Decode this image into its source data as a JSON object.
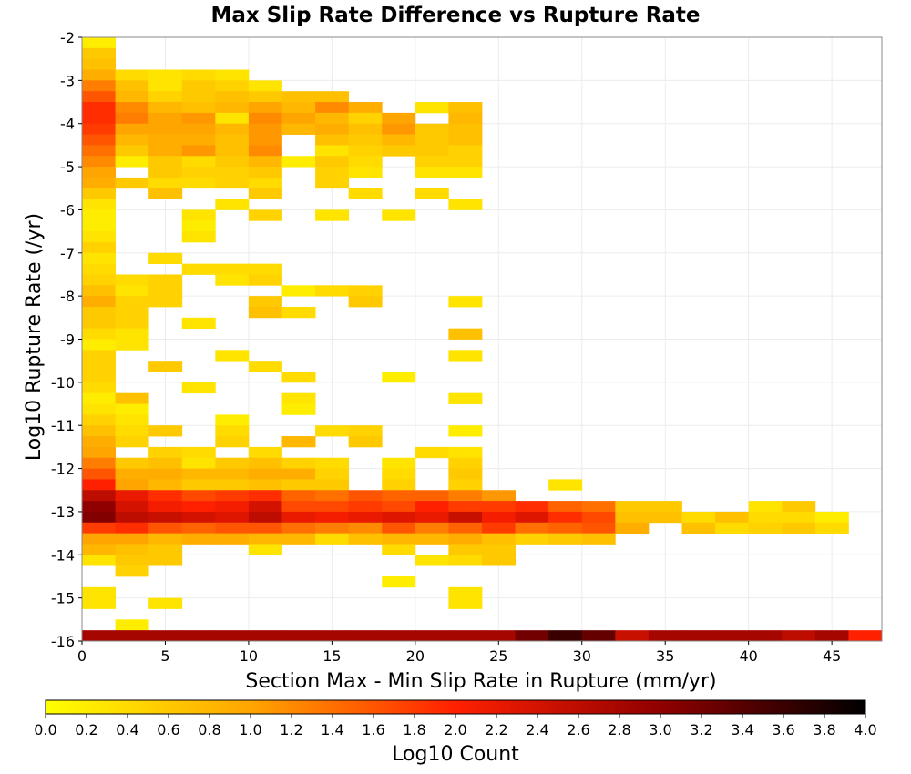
{
  "chart_data": {
    "type": "heatmap",
    "title": "Max Slip Rate Difference vs Rupture Rate",
    "xlabel": "Section Max - Min Slip Rate in Rupture (mm/yr)",
    "ylabel": "Log10 Rupture Rate (/yr)",
    "xlim": [
      0,
      48
    ],
    "ylim": [
      -16,
      -2
    ],
    "x_ticks": [
      0,
      5,
      10,
      15,
      20,
      25,
      30,
      35,
      40,
      45
    ],
    "y_ticks": [
      -2,
      -3,
      -4,
      -5,
      -6,
      -7,
      -8,
      -9,
      -10,
      -11,
      -12,
      -13,
      -14,
      -15,
      -16
    ],
    "x_bin_width": 2,
    "y_bin_width": 0.25,
    "grid": true,
    "colorbar": {
      "label": "Log10 Count",
      "range": [
        0,
        4
      ],
      "ticks": [
        "0.0",
        "0.2",
        "0.4",
        "0.6",
        "0.8",
        "1.0",
        "1.2",
        "1.4",
        "1.6",
        "1.8",
        "2.0",
        "2.2",
        "2.4",
        "2.6",
        "2.8",
        "3.0",
        "3.2",
        "3.4",
        "3.6",
        "3.8",
        "4.0"
      ],
      "colormap": [
        "#ffff00",
        "#ffa500",
        "#ff2000",
        "#900000",
        "#000000"
      ]
    },
    "cells_note": "each row: [y_bin_bottom, x_bin_start_index(0=0-2,1=2-4,...), values (log10 count) per consecutive x-bin, null = empty]",
    "cells": [
      [
        -2.25,
        0,
        [
          0.2
        ]
      ],
      [
        -2.5,
        0,
        [
          0.6
        ]
      ],
      [
        -2.75,
        0,
        [
          0.7
        ]
      ],
      [
        -3.0,
        0,
        [
          0.9,
          0.4,
          0.3,
          0.4,
          0.3
        ]
      ],
      [
        -3.25,
        0,
        [
          1.3,
          0.7,
          0.3,
          0.6,
          0.5,
          0.3
        ]
      ],
      [
        -3.5,
        0,
        [
          1.6,
          0.8,
          0.5,
          0.6,
          0.7,
          0.6,
          0.7,
          0.7
        ]
      ],
      [
        -3.75,
        0,
        [
          1.9,
          1.2,
          0.8,
          0.7,
          0.8,
          1.0,
          0.8,
          1.2,
          0.9,
          null,
          0.3,
          0.7
        ]
      ],
      [
        -4.0,
        0,
        [
          1.9,
          1.3,
          1.0,
          1.1,
          0.3,
          1.2,
          1.0,
          0.8,
          0.5,
          1.0,
          null,
          0.8
        ]
      ],
      [
        -4.25,
        0,
        [
          1.8,
          1.0,
          1.0,
          1.0,
          0.8,
          1.1,
          0.8,
          0.9,
          0.7,
          1.1,
          0.6,
          0.7
        ]
      ],
      [
        -4.5,
        0,
        [
          1.6,
          0.8,
          0.9,
          0.9,
          0.7,
          1.1,
          null,
          0.7,
          0.6,
          0.8,
          0.6,
          0.7
        ]
      ],
      [
        -4.75,
        0,
        [
          1.4,
          0.6,
          0.9,
          1.1,
          0.7,
          1.2,
          null,
          0.3,
          0.5,
          0.6,
          0.6,
          0.5
        ]
      ],
      [
        -5.0,
        0,
        [
          1.2,
          0.2,
          0.6,
          0.4,
          0.6,
          0.8,
          0.2,
          0.6,
          0.4,
          null,
          0.5,
          0.5
        ]
      ],
      [
        -5.25,
        0,
        [
          1.0,
          null,
          0.6,
          0.5,
          0.5,
          0.6,
          null,
          0.5,
          0.3,
          null,
          0.3,
          0.3
        ]
      ],
      [
        -5.5,
        0,
        [
          0.9,
          0.6,
          0.4,
          0.4,
          0.5,
          0.4,
          null,
          0.5
        ]
      ],
      [
        -5.75,
        0,
        [
          0.6,
          null,
          0.7,
          null,
          null,
          0.6,
          null,
          null,
          0.4,
          null,
          0.4
        ]
      ],
      [
        -6.0,
        0,
        [
          0.3,
          null,
          null,
          null,
          0.3,
          null,
          null,
          null,
          null,
          null,
          null,
          0.3
        ]
      ],
      [
        -6.25,
        0,
        [
          0.2,
          null,
          null,
          0.3,
          null,
          0.5,
          null,
          0.3,
          null,
          0.3
        ]
      ],
      [
        -6.5,
        0,
        [
          0.2,
          null,
          null,
          0.2
        ]
      ],
      [
        -6.75,
        0,
        [
          0.3,
          null,
          null,
          0.3
        ]
      ],
      [
        -7.0,
        0,
        [
          0.5
        ]
      ],
      [
        -7.25,
        0,
        [
          0.3,
          null,
          0.4
        ]
      ],
      [
        -7.5,
        0,
        [
          0.4,
          null,
          null,
          0.4,
          0.4,
          0.4
        ]
      ],
      [
        -7.75,
        0,
        [
          0.5,
          0.4,
          0.5,
          null,
          0.3,
          0.5
        ]
      ],
      [
        -8.0,
        0,
        [
          0.7,
          0.3,
          0.5,
          null,
          null,
          null,
          0.2,
          0.4,
          0.5
        ]
      ],
      [
        -8.25,
        0,
        [
          0.9,
          0.5,
          0.5,
          null,
          null,
          0.6,
          null,
          null,
          0.6,
          null,
          null,
          0.3
        ]
      ],
      [
        -8.5,
        0,
        [
          0.6,
          0.5,
          null,
          null,
          null,
          0.7,
          0.4
        ]
      ],
      [
        -8.75,
        0,
        [
          0.6,
          0.5,
          null,
          0.3
        ]
      ],
      [
        -9.0,
        0,
        [
          0.4,
          0.3,
          null,
          null,
          null,
          null,
          null,
          null,
          null,
          null,
          null,
          0.7
        ]
      ],
      [
        -9.25,
        0,
        [
          0.2,
          0.3
        ]
      ],
      [
        -9.5,
        0,
        [
          0.5,
          null,
          null,
          null,
          0.3,
          null,
          null,
          null,
          null,
          null,
          null,
          0.3
        ]
      ],
      [
        -9.75,
        0,
        [
          0.5,
          null,
          0.6,
          null,
          null,
          0.4
        ]
      ],
      [
        -10.0,
        0,
        [
          0.5,
          null,
          null,
          null,
          null,
          null,
          0.4,
          null,
          null,
          0.2
        ]
      ],
      [
        -10.25,
        0,
        [
          0.4,
          null,
          null,
          0.3
        ]
      ],
      [
        -10.5,
        0,
        [
          0.2,
          0.7,
          null,
          null,
          null,
          null,
          0.3,
          null,
          null,
          null,
          null,
          0.3
        ]
      ],
      [
        -10.75,
        0,
        [
          0.3,
          0.2,
          null,
          null,
          null,
          null,
          0.2
        ]
      ],
      [
        -11.0,
        0,
        [
          0.5,
          0.3,
          null,
          null,
          0.2
        ]
      ],
      [
        -11.25,
        0,
        [
          0.7,
          0.4,
          0.6,
          null,
          0.4,
          null,
          null,
          0.4,
          0.5,
          null,
          null,
          0.2
        ]
      ],
      [
        -11.5,
        0,
        [
          0.9,
          0.5,
          null,
          null,
          0.5,
          null,
          0.8,
          null,
          0.6
        ]
      ],
      [
        -11.75,
        0,
        [
          1.0,
          null,
          0.5,
          0.4,
          null,
          0.4,
          null,
          null,
          null,
          null,
          0.4,
          0.3
        ]
      ],
      [
        -12.0,
        0,
        [
          1.3,
          0.6,
          0.7,
          0.3,
          0.6,
          0.7,
          0.5,
          0.4,
          null,
          0.3,
          null,
          0.5
        ]
      ],
      [
        -12.25,
        0,
        [
          1.6,
          0.9,
          0.9,
          0.8,
          0.8,
          0.9,
          0.9,
          0.5,
          null,
          0.4,
          null,
          0.6
        ]
      ],
      [
        -12.5,
        0,
        [
          2.0,
          1.0,
          0.8,
          0.6,
          0.6,
          0.7,
          0.6,
          0.6,
          null,
          0.5,
          null,
          0.5,
          null,
          null,
          0.3
        ]
      ],
      [
        -12.75,
        0,
        [
          2.6,
          2.2,
          1.9,
          1.7,
          1.8,
          1.9,
          1.5,
          1.4,
          1.6,
          1.5,
          1.5,
          1.3,
          1.1,
          null,
          null,
          null,
          null,
          null,
          null,
          null,
          null,
          null
        ]
      ],
      [
        -13.0,
        0,
        [
          3.0,
          2.4,
          2.1,
          2.0,
          2.1,
          2.4,
          1.7,
          1.7,
          1.8,
          1.7,
          2.0,
          1.8,
          1.8,
          1.9,
          1.5,
          1.4,
          0.6,
          0.6,
          null,
          null,
          0.3,
          0.6
        ]
      ],
      [
        -13.25,
        0,
        [
          3.1,
          2.6,
          2.5,
          2.4,
          2.3,
          2.6,
          2.2,
          2.1,
          2.2,
          2.3,
          2.2,
          2.5,
          2.1,
          2.3,
          1.9,
          1.7,
          0.7,
          0.7,
          0.4,
          0.7,
          0.4,
          0.4,
          0.2
        ]
      ],
      [
        -13.5,
        0,
        [
          1.8,
          1.9,
          1.6,
          1.5,
          1.6,
          1.6,
          1.4,
          1.3,
          1.2,
          1.6,
          1.3,
          1.5,
          1.8,
          1.4,
          1.5,
          1.6,
          0.9,
          null,
          0.7,
          0.4,
          0.5,
          0.6,
          0.4
        ]
      ],
      [
        -13.75,
        0,
        [
          1.0,
          1.0,
          0.8,
          0.9,
          0.9,
          0.8,
          0.8,
          0.4,
          0.7,
          0.8,
          0.8,
          0.9,
          0.7,
          0.5,
          0.6,
          0.7
        ]
      ],
      [
        -14.0,
        0,
        [
          0.8,
          0.7,
          0.6,
          null,
          null,
          0.3,
          null,
          null,
          null,
          0.4,
          null,
          0.6,
          0.6
        ]
      ],
      [
        -14.25,
        0,
        [
          0.3,
          0.6,
          0.6,
          null,
          null,
          null,
          null,
          null,
          null,
          null,
          0.3,
          0.4,
          0.6
        ]
      ],
      [
        -14.5,
        0,
        [
          null,
          0.5
        ]
      ],
      [
        -14.75,
        0,
        [
          null,
          null,
          null,
          null,
          null,
          null,
          null,
          null,
          null,
          0.2,
          null,
          null,
          null
        ]
      ],
      [
        -15.0,
        0,
        [
          0.3,
          null,
          null,
          null,
          null,
          null,
          null,
          null,
          null,
          null,
          null,
          0.3
        ]
      ],
      [
        -15.25,
        0,
        [
          0.3,
          null,
          0.3,
          null,
          null,
          null,
          null,
          null,
          null,
          null,
          null,
          0.3
        ]
      ],
      [
        -15.75,
        0,
        [
          null,
          0.2
        ]
      ],
      [
        -16.0,
        0,
        [
          2.8,
          2.8,
          2.8,
          2.8,
          2.8,
          2.8,
          2.8,
          2.8,
          2.8,
          2.8,
          2.8,
          2.8,
          2.8,
          3.2,
          3.6,
          3.3,
          2.5,
          2.8,
          2.8,
          2.8,
          2.8,
          2.6,
          2.8,
          2.0
        ]
      ]
    ]
  }
}
